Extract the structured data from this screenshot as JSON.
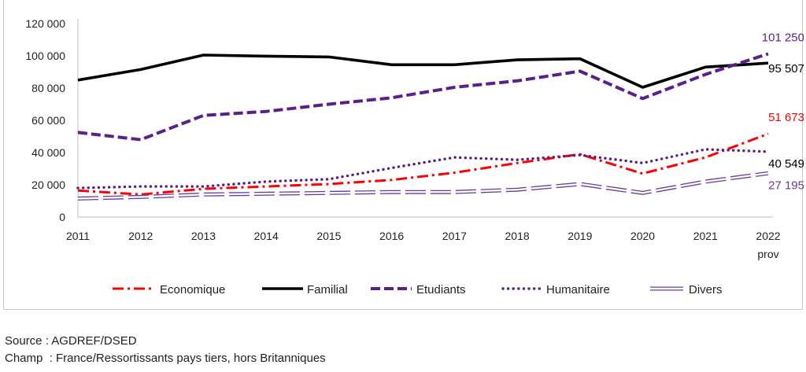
{
  "chart_data": {
    "type": "line",
    "title": "",
    "xlabel": "",
    "ylabel": "",
    "ylim": [
      0,
      120000
    ],
    "y_ticks": [
      0,
      20000,
      40000,
      60000,
      80000,
      100000,
      120000
    ],
    "y_tick_labels": [
      "0",
      "20 000",
      "40 000",
      "60 000",
      "80 000",
      "100 000",
      "120 000"
    ],
    "categories": [
      "2011",
      "2012",
      "2013",
      "2014",
      "2015",
      "2016",
      "2017",
      "2018",
      "2019",
      "2020",
      "2021",
      "2022"
    ],
    "category_sublabel": {
      "index": 11,
      "text": "prov"
    },
    "legend_position": "bottom",
    "series": [
      {
        "name": "Economique",
        "color": "#ff0000",
        "style": "dashdot",
        "values": [
          16500,
          14000,
          17500,
          19000,
          20500,
          23000,
          27500,
          33500,
          39000,
          27000,
          37000,
          51673
        ],
        "end_label": "51 673"
      },
      {
        "name": "Familial",
        "color": "#000000",
        "style": "solid",
        "values": [
          85000,
          91500,
          100500,
          99800,
          99300,
          94500,
          94500,
          97500,
          98200,
          80500,
          93000,
          95507
        ],
        "end_label": "95 507"
      },
      {
        "name": "Etudiants",
        "color": "#5b1f8a",
        "style": "dashed",
        "values": [
          52500,
          48000,
          63000,
          65500,
          70000,
          74000,
          80500,
          84500,
          90500,
          73500,
          88500,
          101250
        ],
        "end_label": "101 250"
      },
      {
        "name": "Humanitaire",
        "color": "#5b1f8a",
        "style": "dotted",
        "values": [
          18000,
          19000,
          19000,
          22000,
          23500,
          30500,
          37000,
          35500,
          38500,
          33500,
          42000,
          40549
        ],
        "end_label": "40 549"
      },
      {
        "name": "Divers",
        "color": "#6a3a9a",
        "style": "hollow",
        "values": [
          11500,
          12500,
          14000,
          14500,
          15000,
          15500,
          15500,
          17000,
          20500,
          15000,
          22000,
          27195
        ],
        "end_label": "27 195"
      }
    ]
  },
  "footer": {
    "source": "Source : AGDREF/DSED",
    "champ": "Champ  : France/Ressortissants pays tiers, hors Britanniques"
  }
}
